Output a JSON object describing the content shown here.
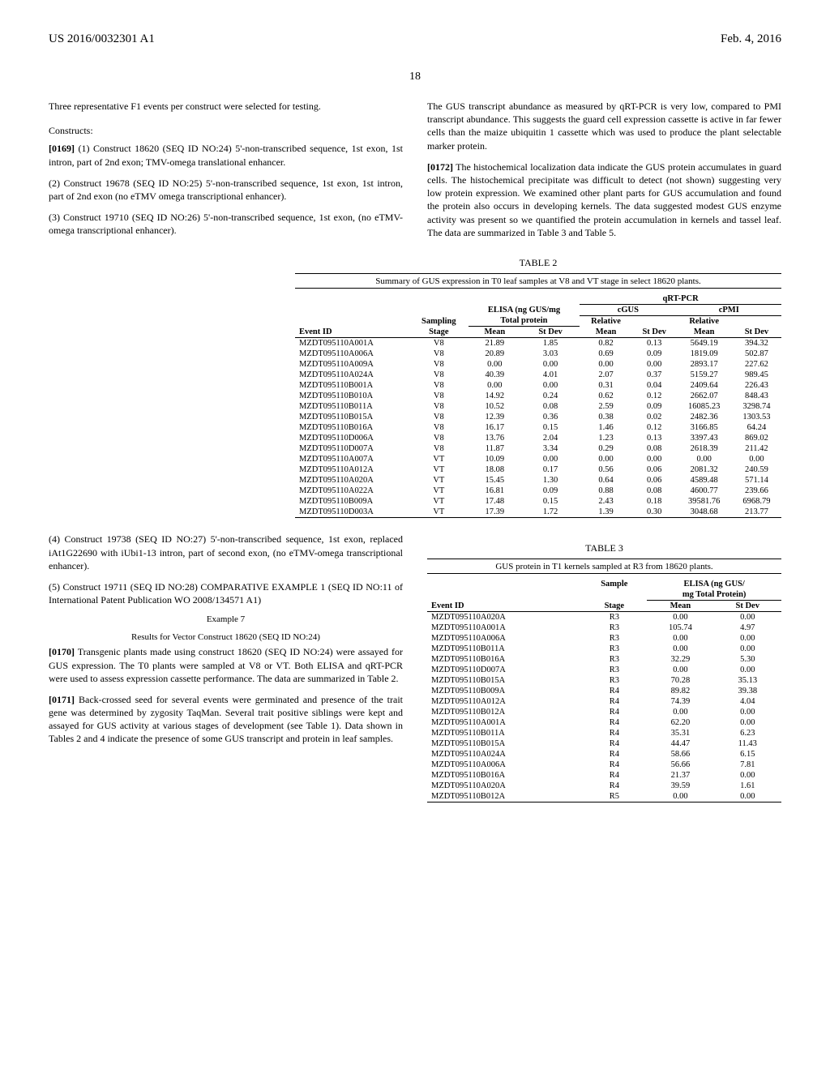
{
  "header": {
    "pub": "US 2016/0032301 A1",
    "date": "Feb. 4, 2016"
  },
  "pageNum": "18",
  "left": {
    "p1": "Three representative F1 events per construct were selected for testing.",
    "constructsLabel": "Constructs:",
    "c1num": "[0169]",
    "c1": "    (1) Construct 18620 (SEQ ID NO:24) 5'-non-transcribed sequence, 1st exon, 1st intron, part of 2nd exon; TMV-omega translational enhancer.",
    "c2": "(2) Construct 19678 (SEQ ID NO:25) 5'-non-transcribed sequence, 1st exon, 1st intron, part of 2nd exon (no eTMV omega transcriptional enhancer).",
    "c3": "(3) Construct 19710 (SEQ ID NO:26) 5'-non-transcribed sequence, 1st exon, (no eTMV-omega transcriptional enhancer).",
    "c4": "(4) Construct 19738 (SEQ ID NO:27) 5'-non-transcribed sequence, 1st exon, replaced iAt1G22690 with iUbi1-13 intron, part of second exon, (no eTMV-omega transcriptional enhancer).",
    "c5": "(5) Construct 19711 (SEQ ID NO:28) COMPARATIVE EXAMPLE 1 (SEQ ID NO:11 of International Patent Publication WO 2008/134571 A1)",
    "ex7": "Example 7",
    "ex7sub": "Results for Vector Construct 18620 (SEQ ID NO:24)",
    "p0170num": "[0170]",
    "p0170": "    Transgenic plants made using construct 18620 (SEQ ID NO:24) were assayed for GUS expression. The T0 plants were sampled at V8 or VT. Both ELISA and qRT-PCR were used to assess expression cassette performance. The data are summarized in Table 2.",
    "p0171num": "[0171]",
    "p0171": "    Back-crossed seed for several events were germinated and presence of the trait gene was determined by zygosity TaqMan. Several trait positive siblings were kept and assayed for GUS activity at various stages of development (see Table 1). Data shown in Tables 2 and 4 indicate the presence of some GUS transcript and protein in leaf samples."
  },
  "right": {
    "pA": "The GUS transcript abundance as measured by qRT-PCR is very low, compared to PMI transcript abundance. This suggests the guard cell expression cassette is active in far fewer cells than the maize ubiquitin 1 cassette which was used to produce the plant selectable marker protein.",
    "p0172num": "[0172]",
    "p0172": "    The histochemical localization data indicate the GUS protein accumulates in guard cells. The histochemical precipitate was difficult to detect (not shown) suggesting very low protein expression. We examined other plant parts for GUS accumulation and found the protein also occurs in developing kernels. The data suggested modest GUS enzyme activity was present so we quantified the protein accumulation in kernels and tassel leaf. The data are summarized in Table 3 and Table 5."
  },
  "table2": {
    "caption": "TABLE 2",
    "sub": "Summary of GUS expression in T0 leaf samples at V8 and VT stage in select 18620 plants.",
    "group1": "ELISA (ng GUS/mg",
    "group1b": "Total protein",
    "group2": "qRT-PCR",
    "sub2a": "cGUS",
    "sub2b": "cPMI",
    "h1": "Event ID",
    "h2": "Sampling",
    "h2b": "Stage",
    "h3": "Mean",
    "h4": "St Dev",
    "h5": "Relative",
    "h5b": "Mean",
    "h6": "St Dev",
    "h7": "Relative",
    "h7b": "Mean",
    "h8": "St Dev",
    "rows": [
      [
        "MZDT095110A001A",
        "V8",
        "21.89",
        "1.85",
        "0.82",
        "0.13",
        "5649.19",
        "394.32"
      ],
      [
        "MZDT095110A006A",
        "V8",
        "20.89",
        "3.03",
        "0.69",
        "0.09",
        "1819.09",
        "502.87"
      ],
      [
        "MZDT095110A009A",
        "V8",
        "0.00",
        "0.00",
        "0.00",
        "0.00",
        "2893.17",
        "227.62"
      ],
      [
        "MZDT095110A024A",
        "V8",
        "40.39",
        "4.01",
        "2.07",
        "0.37",
        "5159.27",
        "989.45"
      ],
      [
        "MZDT095110B001A",
        "V8",
        "0.00",
        "0.00",
        "0.31",
        "0.04",
        "2409.64",
        "226.43"
      ],
      [
        "MZDT095110B010A",
        "V8",
        "14.92",
        "0.24",
        "0.62",
        "0.12",
        "2662.07",
        "848.43"
      ],
      [
        "MZDT095110B011A",
        "V8",
        "10.52",
        "0.08",
        "2.59",
        "0.09",
        "16085.23",
        "3298.74"
      ],
      [
        "MZDT095110B015A",
        "V8",
        "12.39",
        "0.36",
        "0.38",
        "0.02",
        "2482.36",
        "1303.53"
      ],
      [
        "MZDT095110B016A",
        "V8",
        "16.17",
        "0.15",
        "1.46",
        "0.12",
        "3166.85",
        "64.24"
      ],
      [
        "MZDT095110D006A",
        "V8",
        "13.76",
        "2.04",
        "1.23",
        "0.13",
        "3397.43",
        "869.02"
      ],
      [
        "MZDT095110D007A",
        "V8",
        "11.87",
        "3.34",
        "0.29",
        "0.08",
        "2618.39",
        "211.42"
      ],
      [
        "MZDT095110A007A",
        "VT",
        "10.09",
        "0.00",
        "0.00",
        "0.00",
        "0.00",
        "0.00"
      ],
      [
        "MZDT095110A012A",
        "VT",
        "18.08",
        "0.17",
        "0.56",
        "0.06",
        "2081.32",
        "240.59"
      ],
      [
        "MZDT095110A020A",
        "VT",
        "15.45",
        "1.30",
        "0.64",
        "0.06",
        "4589.48",
        "571.14"
      ],
      [
        "MZDT095110A022A",
        "VT",
        "16.81",
        "0.09",
        "0.88",
        "0.08",
        "4600.77",
        "239.66"
      ],
      [
        "MZDT095110B009A",
        "VT",
        "17.48",
        "0.15",
        "2.43",
        "0.18",
        "39581.76",
        "6968.79"
      ],
      [
        "MZDT095110D003A",
        "VT",
        "17.39",
        "1.72",
        "1.39",
        "0.30",
        "3048.68",
        "213.77"
      ]
    ]
  },
  "table3": {
    "caption": "TABLE 3",
    "sub": "GUS protein in T1 kernels sampled at R3 from 18620 plants.",
    "group1a": "Sample",
    "group1b": "Stage",
    "group2": "ELISA (ng GUS/",
    "group2b": "mg Total Protein)",
    "h1": "Event ID",
    "h3": "Mean",
    "h4": "St Dev",
    "rows": [
      [
        "MZDT095110A020A",
        "R3",
        "0.00",
        "0.00"
      ],
      [
        "MZDT095110A001A",
        "R3",
        "105.74",
        "4.97"
      ],
      [
        "MZDT095110A006A",
        "R3",
        "0.00",
        "0.00"
      ],
      [
        "MZDT095110B011A",
        "R3",
        "0.00",
        "0.00"
      ],
      [
        "MZDT095110B016A",
        "R3",
        "32.29",
        "5.30"
      ],
      [
        "MZDT095110D007A",
        "R3",
        "0.00",
        "0.00"
      ],
      [
        "MZDT095110B015A",
        "R3",
        "70.28",
        "35.13"
      ],
      [
        "MZDT095110B009A",
        "R4",
        "89.82",
        "39.38"
      ],
      [
        "MZDT095110A012A",
        "R4",
        "74.39",
        "4.04"
      ],
      [
        "MZDT095110B012A",
        "R4",
        "0.00",
        "0.00"
      ],
      [
        "MZDT095110A001A",
        "R4",
        "62.20",
        "0.00"
      ],
      [
        "MZDT095110B011A",
        "R4",
        "35.31",
        "6.23"
      ],
      [
        "MZDT095110B015A",
        "R4",
        "44.47",
        "11.43"
      ],
      [
        "MZDT095110A024A",
        "R4",
        "58.66",
        "6.15"
      ],
      [
        "MZDT095110A006A",
        "R4",
        "56.66",
        "7.81"
      ],
      [
        "MZDT095110B016A",
        "R4",
        "21.37",
        "0.00"
      ],
      [
        "MZDT095110A020A",
        "R4",
        "39.59",
        "1.61"
      ],
      [
        "MZDT095110B012A",
        "R5",
        "0.00",
        "0.00"
      ]
    ]
  }
}
